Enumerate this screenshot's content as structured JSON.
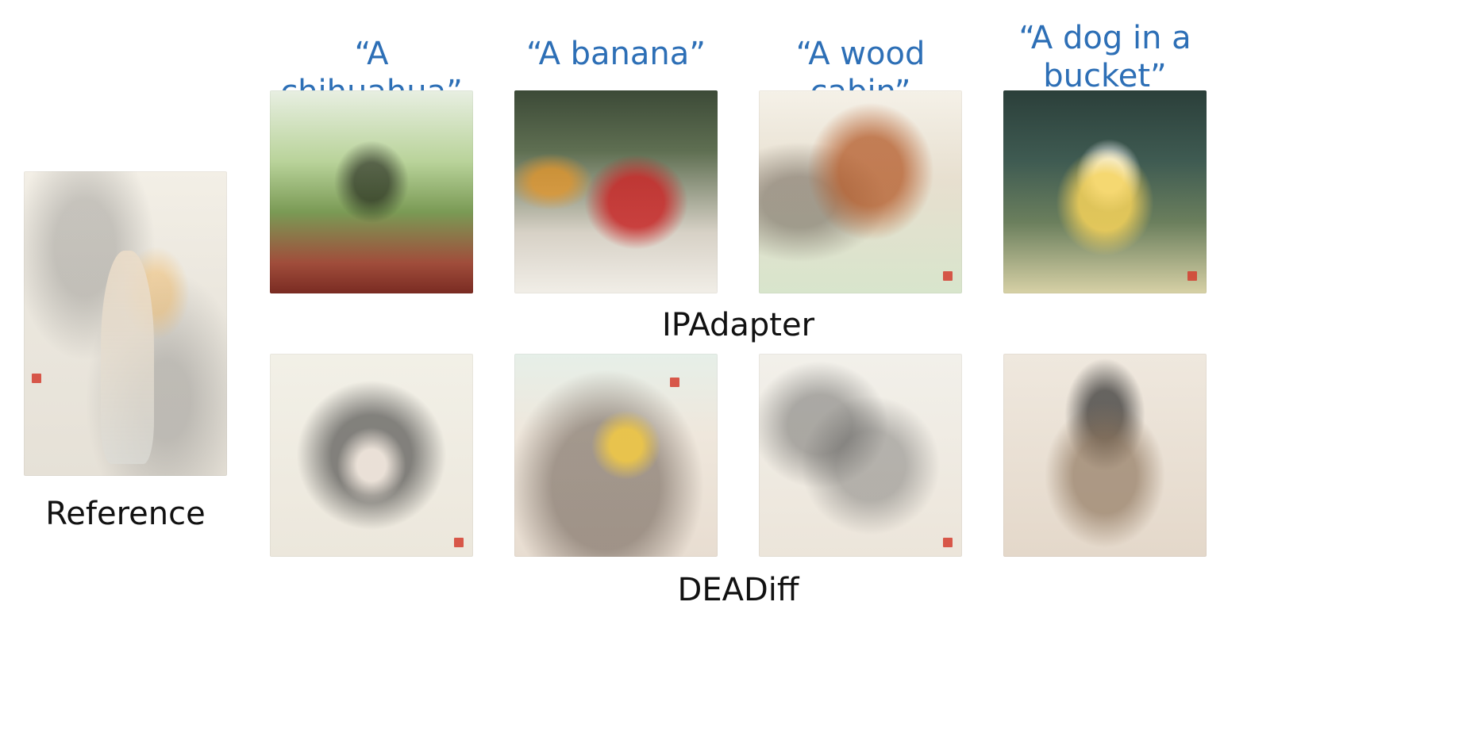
{
  "captions": [
    "“A chihuahua”",
    "“A banana”",
    "“A wood cabin”",
    "“A dog in a\nbucket”"
  ],
  "row_labels": {
    "row1": "IPAdapter",
    "row2": "DEADiff"
  },
  "reference_label": "Reference",
  "colors": {
    "caption_blue": "#2d6fb6",
    "label_black": "#111111",
    "background": "#ffffff"
  }
}
